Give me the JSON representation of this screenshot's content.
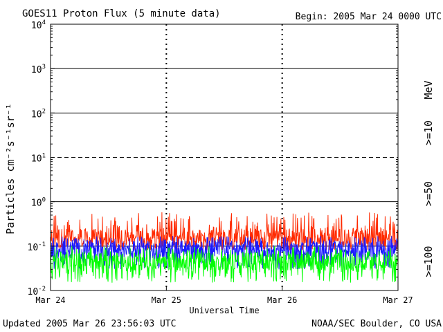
{
  "chart_data": {
    "type": "line",
    "title": "GOES11 Proton Flux (5 minute data)",
    "begin_label": "Begin: 2005 Mar 24 0000 UTC",
    "xlabel": "Universal Time",
    "ylabel": "Particles cm⁻²s⁻¹sr⁻¹",
    "y_scale": "log",
    "ylim": [
      0.01,
      10000
    ],
    "y_ticks": [
      {
        "base": "10",
        "exp": "-2"
      },
      {
        "base": "10",
        "exp": "-1"
      },
      {
        "base": "10",
        "exp": "0"
      },
      {
        "base": "10",
        "exp": "1"
      },
      {
        "base": "10",
        "exp": "2"
      },
      {
        "base": "10",
        "exp": "3"
      },
      {
        "base": "10",
        "exp": "4"
      }
    ],
    "x_ticks": [
      "Mar 24",
      "Mar 25",
      "Mar 26",
      "Mar 27"
    ],
    "xlim_days": [
      0,
      3
    ],
    "unit_label": "MeV",
    "series": [
      {
        "name": ">=10",
        "color": "#ff2a00",
        "typical": 0.16,
        "range": [
          0.08,
          0.58
        ]
      },
      {
        "name": ">=50",
        "color": "#1a1aff",
        "typical": 0.085,
        "range": [
          0.03,
          0.17
        ]
      },
      {
        "name": ">=100",
        "color": "#00ff00",
        "typical": 0.045,
        "range": [
          0.015,
          0.1
        ]
      }
    ]
  },
  "footer": {
    "updated": "Updated 2005 Mar 26 23:56:03 UTC",
    "credit": "NOAA/SEC Boulder, CO USA"
  }
}
